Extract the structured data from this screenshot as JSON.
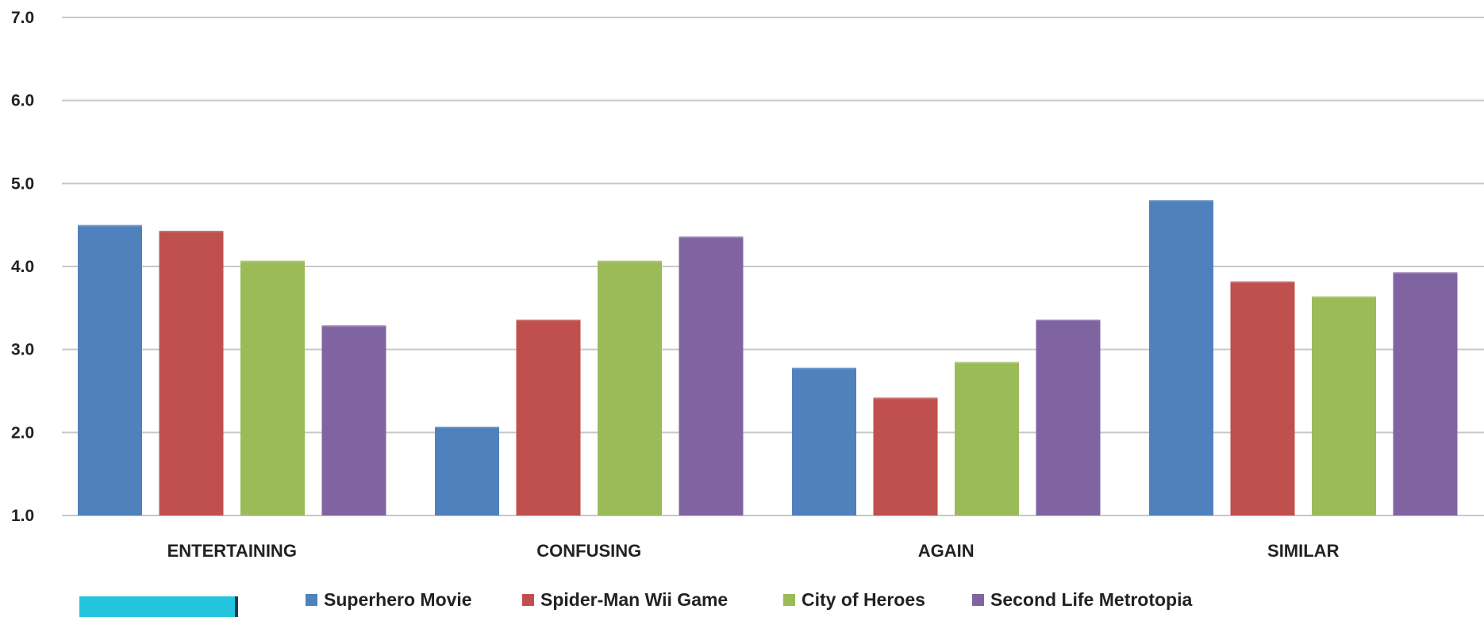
{
  "chart_data": {
    "type": "bar",
    "categories": [
      "ENTERTAINING",
      "CONFUSING",
      "AGAIN",
      "SIMILAR"
    ],
    "series": [
      {
        "name": "Superhero Movie",
        "color": "#4f81bd",
        "values": [
          4.5,
          2.07,
          2.78,
          4.8
        ]
      },
      {
        "name": "Spider-Man Wii Game",
        "color": "#c0504d",
        "values": [
          4.43,
          3.36,
          2.42,
          3.82
        ]
      },
      {
        "name": "City of Heroes",
        "color": "#9bbb59",
        "values": [
          4.07,
          4.07,
          2.85,
          3.64
        ]
      },
      {
        "name": "Second Life Metrotopia",
        "color": "#8064a2",
        "values": [
          3.29,
          4.36,
          3.36,
          3.93
        ]
      }
    ],
    "yticks": [
      "1.0",
      "2.0",
      "3.0",
      "4.0",
      "5.0",
      "6.0",
      "7.0"
    ],
    "ylim": [
      1,
      7
    ],
    "grid": true,
    "legend_position": "bottom",
    "title": "",
    "xlabel": "",
    "ylabel": ""
  },
  "decor": {
    "accent_color": "#22c4de"
  }
}
